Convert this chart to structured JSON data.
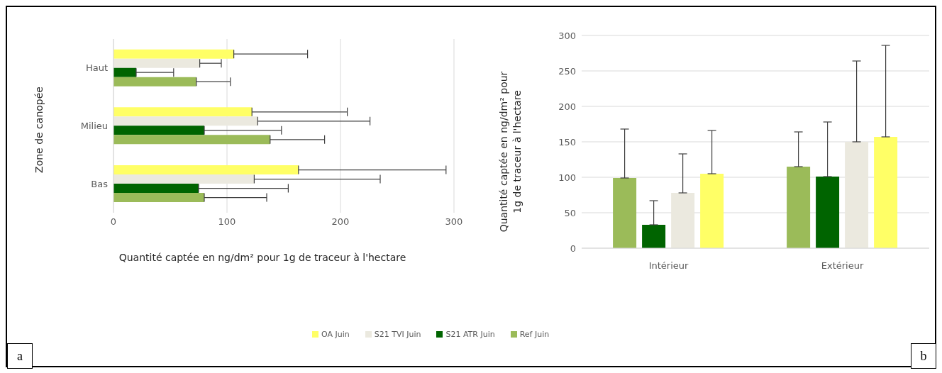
{
  "chart_data": [
    {
      "type": "bar",
      "orientation": "horizontal",
      "categories": [
        "Haut",
        "Milieu",
        "Bas"
      ],
      "xlabel": "Quantité captée en ng/dm² pour 1g de traceur à l'hectare",
      "ylabel": "Zone de canopée",
      "xlim": [
        0,
        300
      ],
      "xticks": [
        0,
        100,
        200,
        300
      ],
      "grid": "x",
      "legend": "bottom",
      "annotations": [
        "a"
      ],
      "series": [
        {
          "name": "OA Juin",
          "color": "#ffff66",
          "values": [
            106,
            122,
            163
          ],
          "errors": [
            [
              106,
              171
            ],
            [
              122,
              206
            ],
            [
              163,
              293
            ]
          ]
        },
        {
          "name": "S21 TVI Juin",
          "color": "#ebe9df",
          "values": [
            76,
            127,
            124
          ],
          "errors": [
            [
              76,
              95
            ],
            [
              127,
              226
            ],
            [
              124,
              235
            ]
          ]
        },
        {
          "name": "S21 ATR Juin",
          "color": "#006400",
          "values": [
            20,
            80,
            75
          ],
          "errors": [
            [
              20,
              53
            ],
            [
              80,
              148
            ],
            [
              75,
              154
            ]
          ]
        },
        {
          "name": "Ref Juin",
          "color": "#9bbb59",
          "values": [
            73,
            138,
            80
          ],
          "errors": [
            [
              73,
              103
            ],
            [
              138,
              186
            ],
            [
              80,
              135
            ]
          ]
        }
      ]
    },
    {
      "type": "bar",
      "categories": [
        "Intérieur",
        "Extérieur"
      ],
      "ylabel": "Quantité captée en ng/dm² pour 1g de traceur à l'hectare",
      "ylim": [
        0,
        300
      ],
      "yticks": [
        0,
        50,
        100,
        150,
        200,
        250,
        300
      ],
      "grid": "y",
      "annotations": [
        "b"
      ],
      "series": [
        {
          "color": "#9bbb59",
          "values": [
            99,
            115
          ],
          "errors": [
            [
              99,
              168
            ],
            [
              115,
              164
            ]
          ]
        },
        {
          "color": "#006400",
          "values": [
            33,
            101
          ],
          "errors": [
            [
              33,
              67
            ],
            [
              101,
              178
            ]
          ]
        },
        {
          "color": "#ebe9df",
          "values": [
            78,
            150
          ],
          "errors": [
            [
              78,
              133
            ],
            [
              150,
              264
            ]
          ]
        },
        {
          "color": "#ffff66",
          "values": [
            105,
            157
          ],
          "errors": [
            [
              105,
              166
            ],
            [
              157,
              286
            ]
          ]
        }
      ]
    }
  ]
}
